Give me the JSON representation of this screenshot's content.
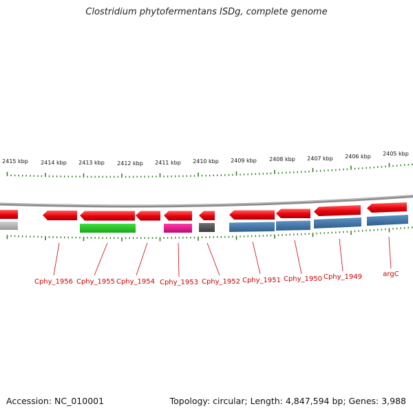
{
  "title": "Clostridium phytofermentans ISDg, complete genome",
  "accession_text": "Accession: NC_010001",
  "summary_text": "Topology: circular; Length: 4,847,594 bp; Genes: 3,988",
  "colors": {
    "backbone": "#8a8a8a",
    "tick": "#2e7d1e",
    "gene_arrow": "#e8000a",
    "label": "#cc0000",
    "blue": "#4a7fb0",
    "green": "#2ecc2e",
    "magenta": "#e8148c",
    "gray": "#b5b5b5",
    "darkgray": "#5a5a5a"
  },
  "scale_labels": [
    "2415 kbp",
    "2414 kbp",
    "2413 kbp",
    "2412 kbp",
    "2411 kbp",
    "2410 kbp",
    "2409 kbp",
    "2408 kbp",
    "2407 kbp",
    "2406 kbp",
    "2405 kbp"
  ],
  "genes": [
    {
      "label": "Cphy_1956"
    },
    {
      "label": "Cphy_1955"
    },
    {
      "label": "Cphy_1954"
    },
    {
      "label": "Cphy_1953"
    },
    {
      "label": "Cphy_1952"
    },
    {
      "label": "Cphy_1951"
    },
    {
      "label": "Cphy_1950"
    },
    {
      "label": "Cphy_1949"
    },
    {
      "label": "argC"
    }
  ]
}
